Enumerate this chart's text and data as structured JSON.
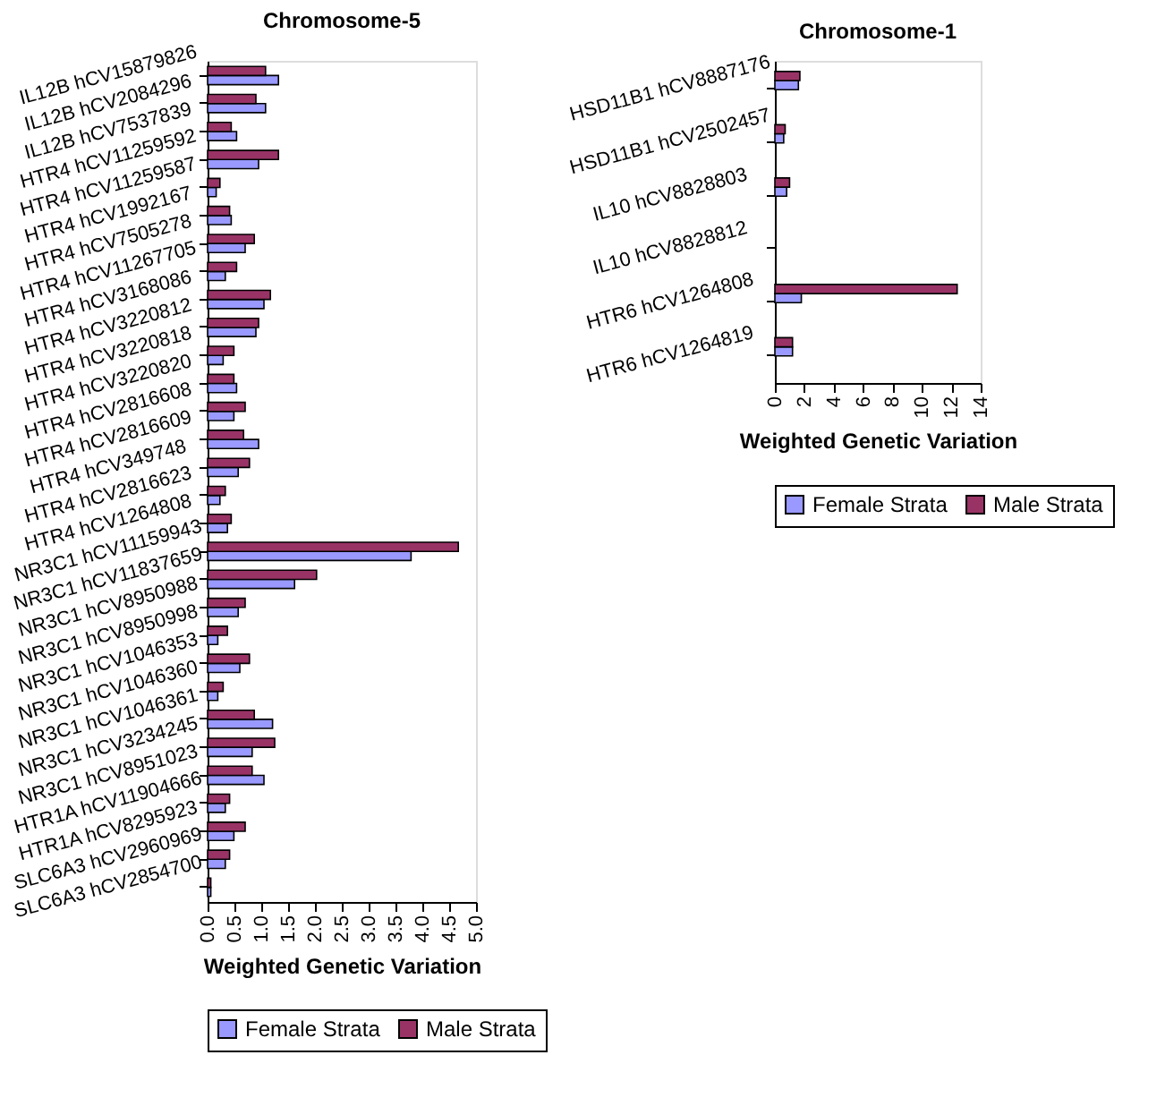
{
  "chart_data": [
    {
      "type": "bar",
      "orientation": "horizontal",
      "title": "Chromosome-5",
      "xlabel": "Weighted Genetic Variation",
      "categories": [
        "IL12B hCV15879826",
        "IL12B hCV2084296",
        "IL12B hCV7537839",
        "HTR4 hCV11259592",
        "HTR4 hCV11259587",
        "HTR4 hCV1992167",
        "HTR4 hCV7505278",
        "HTR4 hCV11267705",
        "HTR4 hCV3168086",
        "HTR4 hCV3220812",
        "HTR4 hCV3220818",
        "HTR4 hCV3220820",
        "HTR4 hCV2816608",
        "HTR4 hCV2816609",
        "HTR4 hCV349748",
        "HTR4 hCV2816623",
        "HTR4 hCV1264808",
        "NR3C1 hCV11159943",
        "NR3C1 hCV11837659",
        "NR3C1 hCV8950988",
        "NR3C1 hCV8950998",
        "NR3C1 hCV1046353",
        "NR3C1 hCV1046360",
        "NR3C1 hCV1046361",
        "NR3C1 hCV3234245",
        "NR3C1 hCV8951023",
        "HTR1A hCV11904666",
        "HTR1A hCV8295923",
        "SLC6A3 hCV2960969",
        "SLC6A3 hCV2854700"
      ],
      "series": [
        {
          "name": "Female Strata",
          "color": "#9999ff",
          "values": [
            1.32,
            1.08,
            0.54,
            0.95,
            0.16,
            0.44,
            0.7,
            0.33,
            1.05,
            0.9,
            0.29,
            0.54,
            0.49,
            0.95,
            0.57,
            0.23,
            0.37,
            3.79,
            1.62,
            0.57,
            0.19,
            0.6,
            0.19,
            1.21,
            0.83,
            1.05,
            0.33,
            0.49,
            0.33,
            0.06
          ]
        },
        {
          "name": "Male Strata",
          "color": "#993366",
          "values": [
            1.08,
            0.9,
            0.44,
            1.32,
            0.23,
            0.41,
            0.87,
            0.54,
            1.17,
            0.95,
            0.49,
            0.49,
            0.7,
            0.67,
            0.78,
            0.33,
            0.44,
            4.67,
            2.03,
            0.7,
            0.37,
            0.78,
            0.29,
            0.87,
            1.25,
            0.83,
            0.41,
            0.7,
            0.41,
            0.06
          ]
        }
      ],
      "xlim": [
        0,
        5
      ],
      "xticks": [
        {
          "value": 0,
          "label": "0.0"
        },
        {
          "value": 0.5,
          "label": "0.5"
        },
        {
          "value": 1,
          "label": "1.0"
        },
        {
          "value": 1.5,
          "label": "1.5"
        },
        {
          "value": 2,
          "label": "2.0"
        },
        {
          "value": 2.5,
          "label": "2.5"
        },
        {
          "value": 3,
          "label": "3.0"
        },
        {
          "value": 3.5,
          "label": "3.5"
        },
        {
          "value": 4,
          "label": "4.0"
        },
        {
          "value": 4.5,
          "label": "4.5"
        },
        {
          "value": 5,
          "label": "5.0"
        }
      ],
      "grid": false,
      "legend": "bottom"
    },
    {
      "type": "bar",
      "orientation": "horizontal",
      "title": "Chromosome-1",
      "xlabel": "Weighted Genetic Variation",
      "categories": [
        "HSD11B1 hCV8887176",
        "HSD11B1 hCV2502457",
        "IL10 hCV8828803",
        "IL10 hCV8828812",
        "HTR6 hCV1264808",
        "HTR6 hCV1264819"
      ],
      "series": [
        {
          "name": "Female Strata",
          "color": "#9999ff",
          "values": [
            1.6,
            0.6,
            0.8,
            null,
            1.8,
            1.2
          ]
        },
        {
          "name": "Male Strata",
          "color": "#993366",
          "values": [
            1.7,
            0.7,
            1.0,
            null,
            12.4,
            1.2
          ]
        }
      ],
      "xlim": [
        0,
        14
      ],
      "xticks": [
        0,
        2,
        4,
        6,
        8,
        10,
        12,
        14
      ],
      "grid": false,
      "legend": "bottom"
    }
  ]
}
